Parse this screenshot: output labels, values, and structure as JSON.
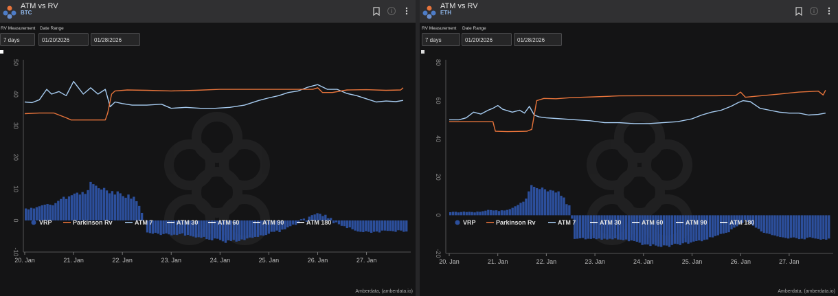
{
  "panels": [
    {
      "title": "ATM vs RV",
      "subtitle": "BTC",
      "rv_label": "RV Measurement",
      "date_label": "Date Range",
      "rv_value": "7 days",
      "date_from": "01/20/2026",
      "date_to": "01/28/2026",
      "credit": "Amberdata, (amberdata.io)"
    },
    {
      "title": "ATM vs RV",
      "subtitle": "ETH",
      "rv_label": "RV Measurement",
      "date_label": "Date Range",
      "rv_value": "7 days",
      "date_from": "01/20/2026",
      "date_to": "01/28/2026",
      "credit": "Amberdata, (amberdata.io)"
    }
  ],
  "legend": [
    {
      "name": "VRP",
      "color": "#2c4f9c",
      "shape": "dot"
    },
    {
      "name": "Parkinson Rv",
      "color": "#e8743b",
      "shape": "line"
    },
    {
      "name": "ATM 7",
      "color": "#a8cdf2",
      "shape": "line"
    },
    {
      "name": "ATM 30",
      "color": "#ffffff",
      "shape": "line"
    },
    {
      "name": "ATM 60",
      "color": "#ffffff",
      "shape": "line"
    },
    {
      "name": "ATM 90",
      "color": "#ffffff",
      "shape": "line"
    },
    {
      "name": "ATM 180",
      "color": "#ffffff",
      "shape": "line"
    }
  ],
  "chart_data": [
    {
      "type": "line",
      "asset": "BTC",
      "x_ticks": [
        "20. Jan",
        "21. Jan",
        "22. Jan",
        "23. Jan",
        "24. Jan",
        "25. Jan",
        "26. Jan",
        "27. Jan"
      ],
      "y_ticks": [
        50,
        40,
        30,
        20,
        10,
        0,
        -10
      ],
      "ylim": [
        -10,
        50
      ],
      "xlim": [
        0,
        7.85
      ],
      "grid": false,
      "legend_position": "bottom",
      "series": [
        {
          "name": "ATM 7",
          "color": "#a8cdf2",
          "points": [
            [
              0,
              37.5
            ],
            [
              0.15,
              37.3
            ],
            [
              0.3,
              38.2
            ],
            [
              0.45,
              41.5
            ],
            [
              0.55,
              40
            ],
            [
              0.7,
              40.8
            ],
            [
              0.85,
              39.5
            ],
            [
              1.0,
              44
            ],
            [
              1.1,
              42
            ],
            [
              1.2,
              40
            ],
            [
              1.35,
              42
            ],
            [
              1.5,
              40
            ],
            [
              1.65,
              41.5
            ],
            [
              1.75,
              36
            ],
            [
              1.85,
              37.5
            ],
            [
              2.0,
              37
            ],
            [
              2.2,
              36.5
            ],
            [
              2.5,
              36.5
            ],
            [
              2.8,
              36.8
            ],
            [
              3.0,
              35.5
            ],
            [
              3.3,
              35.8
            ],
            [
              3.6,
              35.5
            ],
            [
              3.9,
              35.5
            ],
            [
              4.2,
              35.8
            ],
            [
              4.5,
              36.5
            ],
            [
              4.8,
              38
            ],
            [
              5.0,
              38.8
            ],
            [
              5.2,
              39.5
            ],
            [
              5.4,
              40.5
            ],
            [
              5.6,
              41
            ],
            [
              5.8,
              42.2
            ],
            [
              6.0,
              43
            ],
            [
              6.2,
              41.5
            ],
            [
              6.4,
              41.5
            ],
            [
              6.6,
              40.2
            ],
            [
              6.8,
              39.5
            ],
            [
              7.0,
              38.5
            ],
            [
              7.2,
              37.5
            ],
            [
              7.4,
              37.8
            ],
            [
              7.6,
              37.6
            ],
            [
              7.75,
              38
            ]
          ]
        },
        {
          "name": "Parkinson Rv",
          "color": "#e8743b",
          "points": [
            [
              0,
              33.8
            ],
            [
              0.3,
              34
            ],
            [
              0.6,
              34
            ],
            [
              0.85,
              32.5
            ],
            [
              0.95,
              31.8
            ],
            [
              1.3,
              31.8
            ],
            [
              1.65,
              31.8
            ],
            [
              1.7,
              34
            ],
            [
              1.78,
              40
            ],
            [
              1.85,
              41
            ],
            [
              2.1,
              41.3
            ],
            [
              2.5,
              41.2
            ],
            [
              3.0,
              41
            ],
            [
              3.5,
              41.2
            ],
            [
              4.0,
              41.5
            ],
            [
              4.5,
              41.5
            ],
            [
              5.0,
              41.5
            ],
            [
              5.5,
              41.5
            ],
            [
              5.9,
              41.5
            ],
            [
              6.0,
              42
            ],
            [
              6.1,
              40.5
            ],
            [
              6.3,
              40.5
            ],
            [
              6.6,
              41.3
            ],
            [
              7.0,
              41.4
            ],
            [
              7.4,
              41.2
            ],
            [
              7.7,
              41.3
            ],
            [
              7.75,
              42
            ]
          ]
        },
        {
          "name": "VRP",
          "color": "#2c4f9c",
          "type": "column",
          "values": [
            3.8,
            3.5,
            4,
            3.8,
            4.2,
            4.5,
            4.8,
            5,
            5.2,
            5,
            4.8,
            5.5,
            6.2,
            6.8,
            7.5,
            6.8,
            7.6,
            8,
            8.5,
            8.8,
            8.2,
            9,
            8.4,
            9.6,
            12.2,
            11.5,
            11,
            10.2,
            9.8,
            10.3,
            9.5,
            8.6,
            9.3,
            8.2,
            9.2,
            8.6,
            7.7,
            7.2,
            8.2,
            6.9,
            7.5,
            6.1,
            4.6,
            2.4,
            0.1,
            -3.8,
            -4,
            -4.2,
            -3.9,
            -4.2,
            -4.6,
            -4.3,
            -4.1,
            -4.4,
            -4.7,
            -4.5,
            -4.6,
            -4.3,
            -4.1,
            -4.8,
            -4.6,
            -4.9,
            -5.1,
            -5.4,
            -5.3,
            -5.5,
            -5.2,
            -5.9,
            -6.1,
            -6.3,
            -5.7,
            -5.8,
            -6.2,
            -6.6,
            -7.1,
            -6.3,
            -6.5,
            -6.2,
            -6.7,
            -6.5,
            -6,
            -6.2,
            -5.7,
            -5.4,
            -5.5,
            -5.2,
            -5.2,
            -4.7,
            -4.8,
            -4.6,
            -4.2,
            -3.6,
            -3.6,
            -3.2,
            -3.7,
            -2.9,
            -2.8,
            -2.2,
            -1.8,
            -1.3,
            -1.4,
            -0.9,
            0.4,
            0.6,
            -0.4,
            1.2,
            1.7,
            1.9,
            2.3,
            2.1,
            1.4,
            1.8,
            0.7,
            0.8,
            -0.9,
            -0.6,
            -1.2,
            -1.7,
            -1.8,
            -2.4,
            -2.2,
            -2.8,
            -3.2,
            -3.5,
            -3.6,
            -3.7,
            -3.4,
            -3.6,
            -3.9,
            -3.6,
            -3.5,
            -3.8,
            -3.2,
            -3.2,
            -3.3,
            -3.3,
            -3.4,
            -3.6,
            -3.1,
            -3.2,
            -3.6,
            -3.5
          ]
        }
      ]
    },
    {
      "type": "line",
      "asset": "ETH",
      "x_ticks": [
        "20. Jan",
        "21. Jan",
        "22. Jan",
        "23. Jan",
        "24. Jan",
        "25. Jan",
        "26. Jan",
        "27. Jan"
      ],
      "y_ticks": [
        80,
        60,
        40,
        20,
        0,
        -20
      ],
      "ylim": [
        -20,
        80
      ],
      "xlim": [
        0,
        7.85
      ],
      "grid": false,
      "legend_position": "bottom",
      "series": [
        {
          "name": "ATM 7",
          "color": "#a8cdf2",
          "points": [
            [
              0,
              50
            ],
            [
              0.2,
              50
            ],
            [
              0.35,
              51
            ],
            [
              0.5,
              54
            ],
            [
              0.65,
              53
            ],
            [
              0.8,
              55
            ],
            [
              0.9,
              56
            ],
            [
              1.0,
              57.5
            ],
            [
              1.1,
              55.5
            ],
            [
              1.3,
              54
            ],
            [
              1.45,
              55
            ],
            [
              1.55,
              53.5
            ],
            [
              1.65,
              57
            ],
            [
              1.75,
              52.5
            ],
            [
              1.85,
              51.5
            ],
            [
              2.0,
              51
            ],
            [
              2.3,
              50.5
            ],
            [
              2.6,
              50
            ],
            [
              2.9,
              49.5
            ],
            [
              3.2,
              48.5
            ],
            [
              3.5,
              48.5
            ],
            [
              3.8,
              48
            ],
            [
              4.1,
              48
            ],
            [
              4.4,
              48.5
            ],
            [
              4.7,
              49
            ],
            [
              5.0,
              50.5
            ],
            [
              5.2,
              52.5
            ],
            [
              5.4,
              54
            ],
            [
              5.6,
              55
            ],
            [
              5.8,
              57
            ],
            [
              5.95,
              59
            ],
            [
              6.05,
              60
            ],
            [
              6.2,
              59.5
            ],
            [
              6.4,
              56
            ],
            [
              6.6,
              55
            ],
            [
              6.8,
              54
            ],
            [
              7.0,
              53.5
            ],
            [
              7.2,
              53.5
            ],
            [
              7.4,
              52.5
            ],
            [
              7.6,
              52.8
            ],
            [
              7.75,
              53.5
            ]
          ]
        },
        {
          "name": "Parkinson Rv",
          "color": "#e8743b",
          "points": [
            [
              0,
              49
            ],
            [
              0.3,
              49
            ],
            [
              0.6,
              49
            ],
            [
              0.9,
              49
            ],
            [
              0.95,
              44
            ],
            [
              1.2,
              43.8
            ],
            [
              1.6,
              44
            ],
            [
              1.7,
              45
            ],
            [
              1.8,
              60
            ],
            [
              1.95,
              61.2
            ],
            [
              2.2,
              61
            ],
            [
              2.5,
              61.6
            ],
            [
              3.0,
              62
            ],
            [
              3.5,
              62.5
            ],
            [
              4.0,
              62.6
            ],
            [
              4.5,
              62.6
            ],
            [
              5.0,
              62.6
            ],
            [
              5.5,
              62.6
            ],
            [
              5.9,
              62.7
            ],
            [
              6.0,
              64.5
            ],
            [
              6.1,
              61.8
            ],
            [
              6.4,
              62.5
            ],
            [
              6.8,
              63.5
            ],
            [
              7.2,
              64.5
            ],
            [
              7.6,
              65
            ],
            [
              7.7,
              63
            ],
            [
              7.75,
              65.5
            ]
          ]
        },
        {
          "name": "VRP",
          "color": "#2c4f9c",
          "type": "column",
          "values": [
            1.6,
            1.8,
            1.8,
            1.5,
            1.7,
            1.9,
            1.7,
            1.8,
            1.7,
            1.5,
            1.9,
            1.8,
            2.1,
            2.4,
            2.8,
            2.7,
            2.5,
            2.6,
            2.2,
            2.6,
            2.5,
            2.8,
            3.2,
            3.9,
            4.7,
            5.4,
            6.5,
            7.1,
            8.7,
            12.5,
            15.8,
            14.9,
            14.2,
            13.7,
            14.5,
            13.6,
            12.5,
            13.2,
            12.9,
            11.9,
            12.5,
            10.2,
            9.3,
            5.8,
            5.2,
            -1.8,
            -12.4,
            -12.3,
            -12.1,
            -11.9,
            -12.6,
            -12.3,
            -12.4,
            -12.1,
            -12.5,
            -12.2,
            -12.8,
            -12.3,
            -12.7,
            -12.3,
            -12.6,
            -12.1,
            -12.7,
            -12.8,
            -13.1,
            -12.7,
            -13.6,
            -13.2,
            -13.5,
            -13.9,
            -14.4,
            -15.6,
            -15.3,
            -15.3,
            -16.1,
            -15.2,
            -15.9,
            -16.4,
            -16.6,
            -15.8,
            -15.9,
            -16.6,
            -15.6,
            -14.9,
            -15.1,
            -15.6,
            -14.7,
            -14.2,
            -14.9,
            -14.3,
            -13.8,
            -13.5,
            -13.2,
            -13.6,
            -12.9,
            -12.7,
            -11.5,
            -11.6,
            -10.9,
            -10.5,
            -9.8,
            -9.6,
            -9.2,
            -8.9,
            -7.4,
            -6.5,
            -5.8,
            -4.7,
            -4.1,
            -2.4,
            -3.4,
            -4.6,
            -5.5,
            -6.5,
            -7.1,
            -8.5,
            -9.2,
            -9.5,
            -9.8,
            -10.4,
            -10.6,
            -11.1,
            -11.4,
            -11.6,
            -11.9,
            -12.2,
            -11.8,
            -11.6,
            -12,
            -12.5,
            -12.3,
            -12.6,
            -11.8,
            -11.5,
            -11.9,
            -12.2,
            -12.4,
            -12.8,
            -12.5,
            -12.8,
            -12.2
          ]
        }
      ]
    }
  ]
}
